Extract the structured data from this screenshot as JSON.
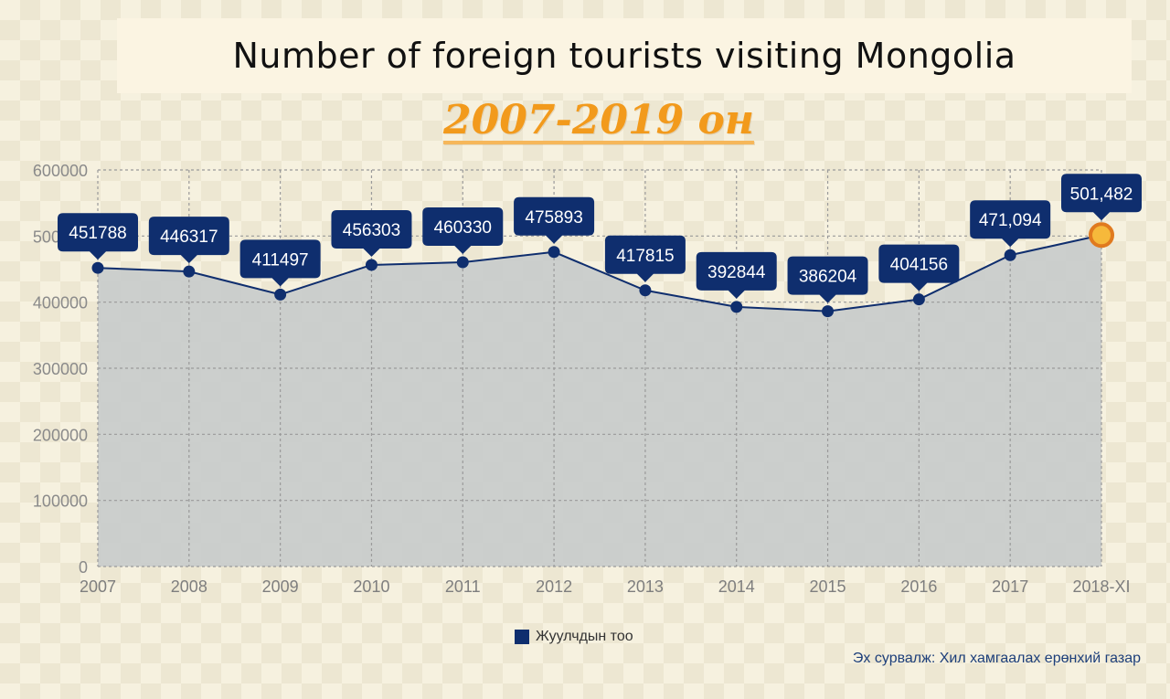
{
  "title": "Number of foreign tourists visiting Mongolia",
  "subtitle": "2007-2019 он",
  "source": "Эх сурвалж: Хил хамгаалах ерөнхий газар",
  "legend_label": "Жуулчдын тоо",
  "colors": {
    "series": "#0f2e6e",
    "area": "#c9cccb",
    "highlight_point": "#f6b93b",
    "highlight_ring": "#e07a1f",
    "subtitle": "#f29a1c"
  },
  "chart_data": {
    "type": "area",
    "categories": [
      "2007",
      "2008",
      "2009",
      "2010",
      "2011",
      "2012",
      "2013",
      "2014",
      "2015",
      "2016",
      "2017",
      "2018-XI"
    ],
    "series": [
      {
        "name": "Жуулчдын тоо",
        "values": [
          451788,
          446317,
          411497,
          456303,
          460330,
          475893,
          417815,
          392844,
          386204,
          404156,
          471094,
          501482
        ]
      }
    ],
    "data_labels": [
      "451788",
      "446317",
      "411497",
      "456303",
      "460330",
      "475893",
      "417815",
      "392844",
      "386204",
      "404156",
      "471,094",
      "501,482"
    ],
    "highlight_index": 11,
    "ylim": [
      0,
      600000
    ],
    "yticks": [
      "0",
      "100000",
      "200000",
      "300000",
      "400000",
      "500000",
      "600000"
    ],
    "grid": true,
    "legend_position": "bottom"
  }
}
